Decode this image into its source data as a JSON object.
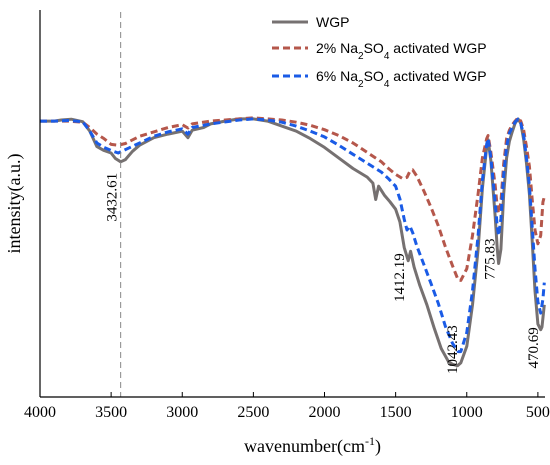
{
  "chart_data": {
    "type": "line",
    "xlabel": "wavenumber(cm⁻¹)",
    "xlabel_parts": [
      "wavenumber(cm",
      "-1",
      ")"
    ],
    "ylabel": "intensity(a.u.)",
    "xlim": [
      4000,
      450
    ],
    "x_reversed": true,
    "x_ticks": [
      4000,
      3500,
      3000,
      2500,
      2000,
      1500,
      1000,
      500
    ],
    "y_ticks_shown": false,
    "y_range_normalized": [
      0,
      1
    ],
    "legend_position": "top-right",
    "grid": false,
    "series": [
      {
        "name": "WGP",
        "legend_parts": [
          "WGP",
          "",
          ""
        ],
        "color": "#767171",
        "style": "solid",
        "points": [
          [
            4000,
            0.913
          ],
          [
            3900,
            0.913
          ],
          [
            3850,
            0.917
          ],
          [
            3780,
            0.92
          ],
          [
            3700,
            0.911
          ],
          [
            3650,
            0.877
          ],
          [
            3600,
            0.821
          ],
          [
            3550,
            0.807
          ],
          [
            3500,
            0.798
          ],
          [
            3470,
            0.778
          ],
          [
            3433,
            0.766
          ],
          [
            3400,
            0.774
          ],
          [
            3350,
            0.804
          ],
          [
            3300,
            0.826
          ],
          [
            3200,
            0.853
          ],
          [
            3100,
            0.866
          ],
          [
            3000,
            0.877
          ],
          [
            2960,
            0.853
          ],
          [
            2930,
            0.88
          ],
          [
            2850,
            0.89
          ],
          [
            2800,
            0.903
          ],
          [
            2700,
            0.913
          ],
          [
            2600,
            0.921
          ],
          [
            2500,
            0.921
          ],
          [
            2400,
            0.913
          ],
          [
            2300,
            0.895
          ],
          [
            2200,
            0.877
          ],
          [
            2100,
            0.85
          ],
          [
            2000,
            0.818
          ],
          [
            1900,
            0.78
          ],
          [
            1800,
            0.742
          ],
          [
            1700,
            0.711
          ],
          [
            1660,
            0.689
          ],
          [
            1640,
            0.63
          ],
          [
            1620,
            0.678
          ],
          [
            1580,
            0.646
          ],
          [
            1540,
            0.622
          ],
          [
            1500,
            0.595
          ],
          [
            1470,
            0.549
          ],
          [
            1440,
            0.457
          ],
          [
            1412,
            0.409
          ],
          [
            1395,
            0.443
          ],
          [
            1370,
            0.386
          ],
          [
            1330,
            0.32
          ],
          [
            1280,
            0.25
          ],
          [
            1230,
            0.168
          ],
          [
            1180,
            0.092
          ],
          [
            1130,
            0.046
          ],
          [
            1100,
            0.035
          ],
          [
            1065,
            0.03
          ],
          [
            1042,
            0.04
          ],
          [
            1000,
            0.1
          ],
          [
            960,
            0.25
          ],
          [
            920,
            0.45
          ],
          [
            890,
            0.67
          ],
          [
            860,
            0.82
          ],
          [
            850,
            0.846
          ],
          [
            830,
            0.769
          ],
          [
            800,
            0.567
          ],
          [
            785,
            0.45
          ],
          [
            776,
            0.399
          ],
          [
            760,
            0.45
          ],
          [
            740,
            0.65
          ],
          [
            720,
            0.78
          ],
          [
            700,
            0.84
          ],
          [
            680,
            0.875
          ],
          [
            660,
            0.905
          ],
          [
            640,
            0.921
          ],
          [
            620,
            0.905
          ],
          [
            600,
            0.846
          ],
          [
            580,
            0.76
          ],
          [
            560,
            0.65
          ],
          [
            540,
            0.48
          ],
          [
            520,
            0.3
          ],
          [
            500,
            0.18
          ],
          [
            480,
            0.16
          ],
          [
            471,
            0.17
          ],
          [
            455,
            0.25
          ]
        ]
      },
      {
        "name": "2% Na2SO4 activated WGP",
        "legend_parts": [
          "2% Na",
          "2",
          "SO4 activated WGP"
        ],
        "legend_sub": [
          "2",
          "4"
        ],
        "color": "#b5574b",
        "style": "dashed",
        "points": [
          [
            4000,
            0.913
          ],
          [
            3900,
            0.913
          ],
          [
            3800,
            0.913
          ],
          [
            3700,
            0.909
          ],
          [
            3650,
            0.89
          ],
          [
            3600,
            0.866
          ],
          [
            3550,
            0.85
          ],
          [
            3500,
            0.829
          ],
          [
            3450,
            0.826
          ],
          [
            3400,
            0.832
          ],
          [
            3300,
            0.858
          ],
          [
            3200,
            0.874
          ],
          [
            3100,
            0.89
          ],
          [
            3000,
            0.9
          ],
          [
            2960,
            0.888
          ],
          [
            2930,
            0.903
          ],
          [
            2800,
            0.913
          ],
          [
            2600,
            0.921
          ],
          [
            2500,
            0.925
          ],
          [
            2400,
            0.921
          ],
          [
            2300,
            0.917
          ],
          [
            2200,
            0.909
          ],
          [
            2100,
            0.898
          ],
          [
            2000,
            0.882
          ],
          [
            1900,
            0.861
          ],
          [
            1800,
            0.834
          ],
          [
            1700,
            0.8
          ],
          [
            1600,
            0.766
          ],
          [
            1550,
            0.742
          ],
          [
            1500,
            0.721
          ],
          [
            1450,
            0.705
          ],
          [
            1420,
            0.71
          ],
          [
            1400,
            0.732
          ],
          [
            1380,
            0.737
          ],
          [
            1350,
            0.713
          ],
          [
            1300,
            0.659
          ],
          [
            1250,
            0.6
          ],
          [
            1200,
            0.535
          ],
          [
            1150,
            0.459
          ],
          [
            1100,
            0.391
          ],
          [
            1060,
            0.339
          ],
          [
            1042,
            0.338
          ],
          [
            1000,
            0.38
          ],
          [
            960,
            0.5
          ],
          [
            920,
            0.65
          ],
          [
            890,
            0.78
          ],
          [
            860,
            0.85
          ],
          [
            850,
            0.861
          ],
          [
            830,
            0.8
          ],
          [
            800,
            0.68
          ],
          [
            785,
            0.6
          ],
          [
            776,
            0.58
          ],
          [
            760,
            0.62
          ],
          [
            740,
            0.76
          ],
          [
            720,
            0.85
          ],
          [
            700,
            0.88
          ],
          [
            680,
            0.9
          ],
          [
            660,
            0.913
          ],
          [
            640,
            0.925
          ],
          [
            620,
            0.913
          ],
          [
            600,
            0.88
          ],
          [
            580,
            0.82
          ],
          [
            560,
            0.75
          ],
          [
            540,
            0.63
          ],
          [
            520,
            0.52
          ],
          [
            500,
            0.47
          ],
          [
            480,
            0.5
          ],
          [
            465,
            0.62
          ],
          [
            455,
            0.64
          ]
        ]
      },
      {
        "name": "6% Na2SO4 activated WGP",
        "legend_parts": [
          "6% Na",
          "2",
          "SO4 activated WGP"
        ],
        "legend_sub": [
          "2",
          "4"
        ],
        "color": "#1a5be6",
        "style": "dashed",
        "points": [
          [
            4000,
            0.913
          ],
          [
            3900,
            0.913
          ],
          [
            3800,
            0.915
          ],
          [
            3700,
            0.911
          ],
          [
            3650,
            0.877
          ],
          [
            3600,
            0.834
          ],
          [
            3550,
            0.818
          ],
          [
            3500,
            0.807
          ],
          [
            3450,
            0.798
          ],
          [
            3400,
            0.81
          ],
          [
            3300,
            0.834
          ],
          [
            3200,
            0.858
          ],
          [
            3100,
            0.874
          ],
          [
            3000,
            0.885
          ],
          [
            2960,
            0.866
          ],
          [
            2930,
            0.89
          ],
          [
            2800,
            0.903
          ],
          [
            2600,
            0.917
          ],
          [
            2500,
            0.921
          ],
          [
            2400,
            0.917
          ],
          [
            2300,
            0.909
          ],
          [
            2200,
            0.895
          ],
          [
            2100,
            0.877
          ],
          [
            2000,
            0.856
          ],
          [
            1900,
            0.826
          ],
          [
            1800,
            0.793
          ],
          [
            1700,
            0.761
          ],
          [
            1600,
            0.729
          ],
          [
            1550,
            0.705
          ],
          [
            1500,
            0.678
          ],
          [
            1470,
            0.632
          ],
          [
            1440,
            0.559
          ],
          [
            1420,
            0.52
          ],
          [
            1400,
            0.534
          ],
          [
            1380,
            0.51
          ],
          [
            1350,
            0.46
          ],
          [
            1300,
            0.393
          ],
          [
            1250,
            0.325
          ],
          [
            1200,
            0.255
          ],
          [
            1150,
            0.172
          ],
          [
            1100,
            0.111
          ],
          [
            1060,
            0.081
          ],
          [
            1042,
            0.081
          ],
          [
            1000,
            0.15
          ],
          [
            960,
            0.3
          ],
          [
            920,
            0.5
          ],
          [
            890,
            0.7
          ],
          [
            860,
            0.83
          ],
          [
            850,
            0.85
          ],
          [
            830,
            0.78
          ],
          [
            800,
            0.62
          ],
          [
            785,
            0.53
          ],
          [
            776,
            0.5
          ],
          [
            760,
            0.56
          ],
          [
            740,
            0.72
          ],
          [
            720,
            0.82
          ],
          [
            700,
            0.87
          ],
          [
            680,
            0.89
          ],
          [
            660,
            0.91
          ],
          [
            640,
            0.92
          ],
          [
            620,
            0.905
          ],
          [
            600,
            0.86
          ],
          [
            580,
            0.78
          ],
          [
            560,
            0.68
          ],
          [
            540,
            0.53
          ],
          [
            520,
            0.38
          ],
          [
            500,
            0.26
          ],
          [
            480,
            0.22
          ],
          [
            465,
            0.27
          ],
          [
            455,
            0.33
          ]
        ]
      }
    ],
    "reference_line": {
      "x": 3433,
      "color": "#888888",
      "style": "dashed"
    },
    "annotations": [
      {
        "text": "3432.61",
        "x": 3433,
        "y": 0.55,
        "rotation": -90
      },
      {
        "text": "1412.19",
        "x": 1412,
        "y": 0.26,
        "rotation": -90
      },
      {
        "text": "1042.43",
        "x": 1042,
        "y": 0.0,
        "rotation": -90
      },
      {
        "text": "775.83",
        "x": 776,
        "y": 0.34,
        "rotation": -90
      },
      {
        "text": "470.69",
        "x": 471,
        "y": 0.02,
        "rotation": -90
      }
    ]
  }
}
